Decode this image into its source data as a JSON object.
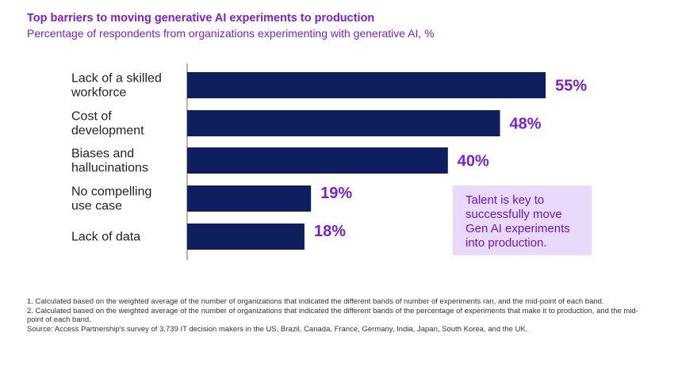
{
  "title": "Top barriers to moving generative AI experiments to production",
  "subtitle": "Percentage of respondents from organizations experimenting with generative AI, %",
  "callout": {
    "lines": [
      "Talent is key to",
      "successfully move",
      "Gen AI experiments",
      "into production."
    ]
  },
  "footnotes": {
    "note1": "1. Calculated based on the weighted average of the number of organizations that indicated the different bands of number of experiments ran, and the mid-point of each band.",
    "note2": "2. Calculated based on the weighted average of the number of organizations that indicated the different bands of the percentage of experiments that make it to production, and the mid-point of each band.",
    "source": "Source: Access Partnership's survey of 3,739 IT decision makers in the US, Brazil, Canada, France, Germany, India, Japan, South Korea, and the UK."
  },
  "colors": {
    "bar": "#0f1e5e",
    "accent": "#7b1fd0",
    "callout_bg": "#e9d9fb",
    "axis": "#666666"
  },
  "chart_data": {
    "type": "bar",
    "orientation": "horizontal",
    "title": "Top barriers to moving generative AI experiments to production",
    "subtitle": "Percentage of respondents from organizations experimenting with generative AI, %",
    "categories": [
      [
        "Lack of a skilled",
        "workforce"
      ],
      [
        "Cost of",
        "development"
      ],
      [
        "Biases and",
        "hallucinations"
      ],
      [
        "No compelling",
        "use case"
      ],
      [
        "Lack of data"
      ]
    ],
    "values": [
      55,
      48,
      40,
      19,
      18
    ],
    "value_labels": [
      "55%",
      "48%",
      "40%",
      "19%",
      "18%"
    ],
    "xlim": [
      0,
      100
    ],
    "grid": false
  }
}
